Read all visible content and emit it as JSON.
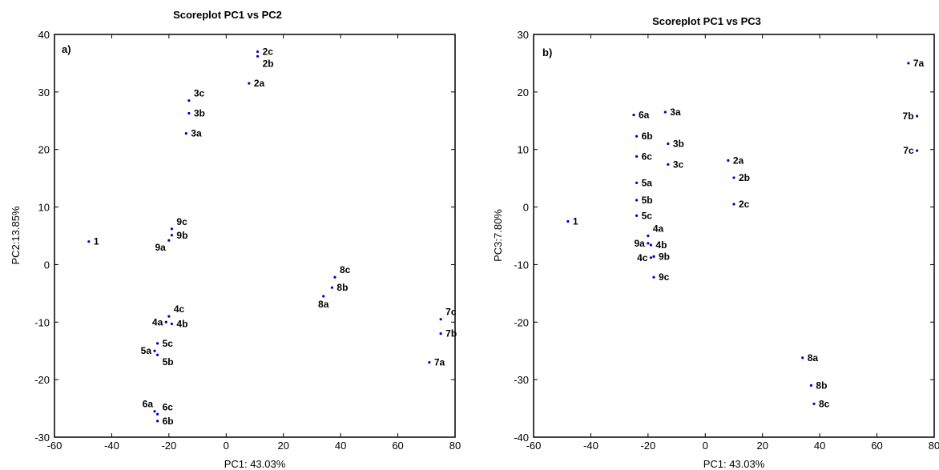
{
  "colors": {
    "point": "#0000cc",
    "axis": "#000000",
    "background": "#ffffff"
  },
  "chart_data": [
    {
      "type": "scatter",
      "title": "Scoreplot PC1 vs PC2",
      "panel_label": "a)",
      "xlabel": "PC1: 43.03%",
      "ylabel": "PC2:13.85%",
      "xlim": [
        -60,
        80
      ],
      "ylim": [
        -30,
        40
      ],
      "xticks": [
        -60,
        -40,
        -20,
        0,
        20,
        40,
        60,
        80
      ],
      "yticks": [
        -30,
        -20,
        -10,
        0,
        10,
        20,
        30,
        40
      ],
      "grid": false,
      "points": [
        {
          "label": "1",
          "x": -48,
          "y": 4,
          "label_pos": "right"
        },
        {
          "label": "2c",
          "x": 11,
          "y": 37,
          "label_pos": "right"
        },
        {
          "label": "2b",
          "x": 11,
          "y": 36.2,
          "label_pos": "right-below"
        },
        {
          "label": "2a",
          "x": 8,
          "y": 31.5,
          "label_pos": "right"
        },
        {
          "label": "3c",
          "x": -13,
          "y": 28.5,
          "label_pos": "right-above"
        },
        {
          "label": "3b",
          "x": -13,
          "y": 26.3,
          "label_pos": "right"
        },
        {
          "label": "3a",
          "x": -14,
          "y": 22.8,
          "label_pos": "right"
        },
        {
          "label": "9c",
          "x": -19,
          "y": 6.2,
          "label_pos": "right-above"
        },
        {
          "label": "9b",
          "x": -19,
          "y": 5.1,
          "label_pos": "right"
        },
        {
          "label": "9a",
          "x": -20,
          "y": 4.2,
          "label_pos": "left-below"
        },
        {
          "label": "8c",
          "x": 38,
          "y": -2.2,
          "label_pos": "right-above"
        },
        {
          "label": "8b",
          "x": 37,
          "y": -4,
          "label_pos": "right"
        },
        {
          "label": "8a",
          "x": 34,
          "y": -5.5,
          "label_pos": "below"
        },
        {
          "label": "4c",
          "x": -20,
          "y": -9,
          "label_pos": "right-above"
        },
        {
          "label": "4a",
          "x": -21,
          "y": -10,
          "label_pos": "left"
        },
        {
          "label": "4b",
          "x": -19,
          "y": -10.3,
          "label_pos": "right"
        },
        {
          "label": "5c",
          "x": -24,
          "y": -13.7,
          "label_pos": "right"
        },
        {
          "label": "5a",
          "x": -25,
          "y": -15,
          "label_pos": "left"
        },
        {
          "label": "5b",
          "x": -24,
          "y": -15.7,
          "label_pos": "right-below"
        },
        {
          "label": "7c",
          "x": 75,
          "y": -9.5,
          "label_pos": "right-above"
        },
        {
          "label": "7b",
          "x": 75,
          "y": -12,
          "label_pos": "right"
        },
        {
          "label": "7a",
          "x": 71,
          "y": -17,
          "label_pos": "right"
        },
        {
          "label": "6a",
          "x": -25,
          "y": -25.5,
          "label_pos": "left-above"
        },
        {
          "label": "6c",
          "x": -24,
          "y": -26,
          "label_pos": "right-above"
        },
        {
          "label": "6b",
          "x": -24,
          "y": -27.2,
          "label_pos": "right"
        }
      ]
    },
    {
      "type": "scatter",
      "title": "Scoreplot PC1 vs PC3",
      "panel_label": "b)",
      "xlabel": "PC1: 43.03%",
      "ylabel": "PC3:7.80%",
      "xlim": [
        -60,
        80
      ],
      "ylim": [
        -40,
        30
      ],
      "xticks": [
        -60,
        -40,
        -20,
        0,
        20,
        40,
        60,
        80
      ],
      "yticks": [
        -40,
        -30,
        -20,
        -10,
        0,
        10,
        20,
        30
      ],
      "grid": false,
      "points": [
        {
          "label": "1",
          "x": -48,
          "y": -2.5,
          "label_pos": "right"
        },
        {
          "label": "7a",
          "x": 71,
          "y": 25,
          "label_pos": "right"
        },
        {
          "label": "7b",
          "x": 74,
          "y": 15.8,
          "label_pos": "left"
        },
        {
          "label": "7c",
          "x": 74,
          "y": 9.8,
          "label_pos": "left"
        },
        {
          "label": "6a",
          "x": -25,
          "y": 16,
          "label_pos": "right"
        },
        {
          "label": "6b",
          "x": -24,
          "y": 12.3,
          "label_pos": "right"
        },
        {
          "label": "6c",
          "x": -24,
          "y": 8.8,
          "label_pos": "right"
        },
        {
          "label": "3a",
          "x": -14,
          "y": 16.5,
          "label_pos": "right"
        },
        {
          "label": "3b",
          "x": -13,
          "y": 11,
          "label_pos": "right"
        },
        {
          "label": "3c",
          "x": -13,
          "y": 7.4,
          "label_pos": "right"
        },
        {
          "label": "2a",
          "x": 8,
          "y": 8.1,
          "label_pos": "right"
        },
        {
          "label": "2b",
          "x": 10,
          "y": 5.1,
          "label_pos": "right"
        },
        {
          "label": "2c",
          "x": 10,
          "y": 0.5,
          "label_pos": "right"
        },
        {
          "label": "5a",
          "x": -24,
          "y": 4.2,
          "label_pos": "right"
        },
        {
          "label": "5b",
          "x": -24,
          "y": 1.2,
          "label_pos": "right"
        },
        {
          "label": "5c",
          "x": -24,
          "y": -1.5,
          "label_pos": "right"
        },
        {
          "label": "4a",
          "x": -20,
          "y": -5,
          "label_pos": "right-above"
        },
        {
          "label": "9a",
          "x": -20,
          "y": -6.3,
          "label_pos": "left"
        },
        {
          "label": "4b",
          "x": -19,
          "y": -6.6,
          "label_pos": "right"
        },
        {
          "label": "4c",
          "x": -19,
          "y": -8.8,
          "label_pos": "left"
        },
        {
          "label": "9b",
          "x": -18,
          "y": -8.6,
          "label_pos": "right"
        },
        {
          "label": "9c",
          "x": -18,
          "y": -12.2,
          "label_pos": "right"
        },
        {
          "label": "8a",
          "x": 34,
          "y": -26.2,
          "label_pos": "right"
        },
        {
          "label": "8b",
          "x": 37,
          "y": -31,
          "label_pos": "right"
        },
        {
          "label": "8c",
          "x": 38,
          "y": -34.2,
          "label_pos": "right"
        }
      ]
    }
  ]
}
